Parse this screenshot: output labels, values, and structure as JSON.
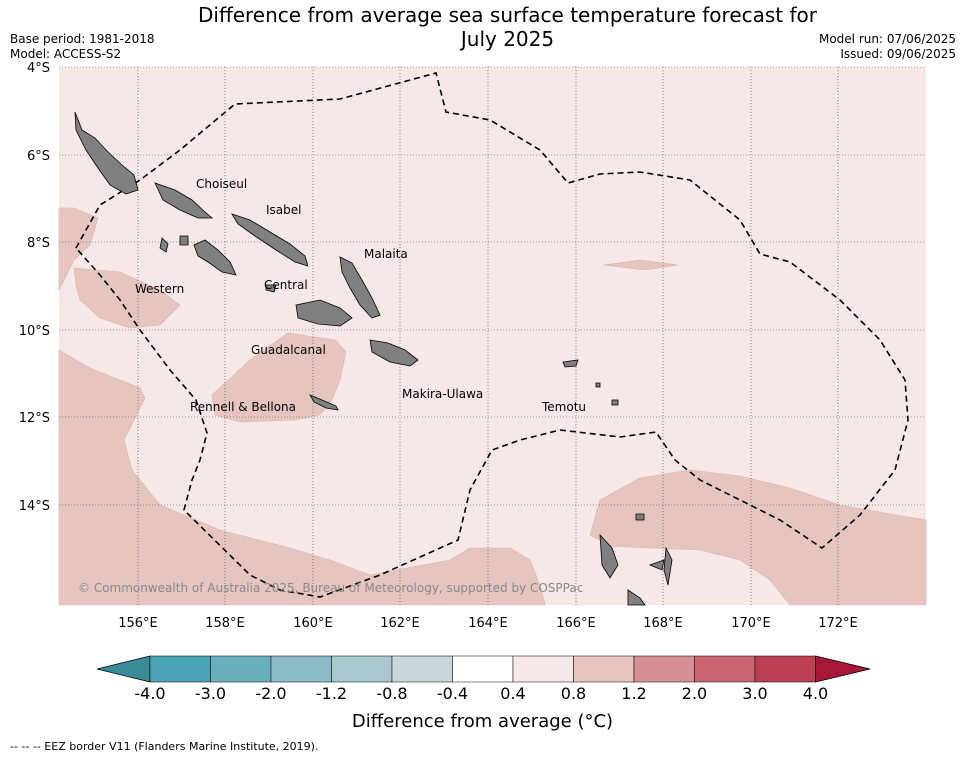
{
  "title_line1": "Difference from average sea surface temperature forecast for",
  "title_line2": "July 2025",
  "base_period": "Base period: 1981-2018",
  "model": "Model: ACCESS-S2",
  "model_run": "Model run: 07/06/2025",
  "issued": "Issued: 09/06/2025",
  "lat_labels": [
    "4°S",
    "6°S",
    "8°S",
    "10°S",
    "12°S",
    "14°S"
  ],
  "lon_labels": [
    "156°E",
    "158°E",
    "160°E",
    "162°E",
    "164°E",
    "166°E",
    "168°E",
    "170°E",
    "172°E"
  ],
  "regions": [
    "Choiseul",
    "Isabel",
    "Malaita",
    "Western",
    "Central",
    "Guadalcanal",
    "Makira-Ulawa",
    "Rennell & Bellona",
    "Temotu"
  ],
  "copyright": "© Commonwealth of Australia 2025, Bureau of Meteorology, supported by COSPPac",
  "colorbar": {
    "ticks": [
      "-4.0",
      "-3.0",
      "-2.0",
      "-1.2",
      "-0.8",
      "-0.4",
      "0.4",
      "0.8",
      "1.2",
      "2.0",
      "3.0",
      "4.0"
    ],
    "colors": [
      "#3a8b99",
      "#4aa3b4",
      "#6aafbe",
      "#8dbbc5",
      "#a9c7cc",
      "#c9d7da",
      "#ffffff",
      "#f5e8e7",
      "#e6c5c0",
      "#d68f95",
      "#c9666f",
      "#bb4152",
      "#a81736"
    ],
    "title": "Difference from average (°C)"
  },
  "footnote": "--  --  -- EEZ border V11 (Flanders Marine Institute, 2019)."
}
